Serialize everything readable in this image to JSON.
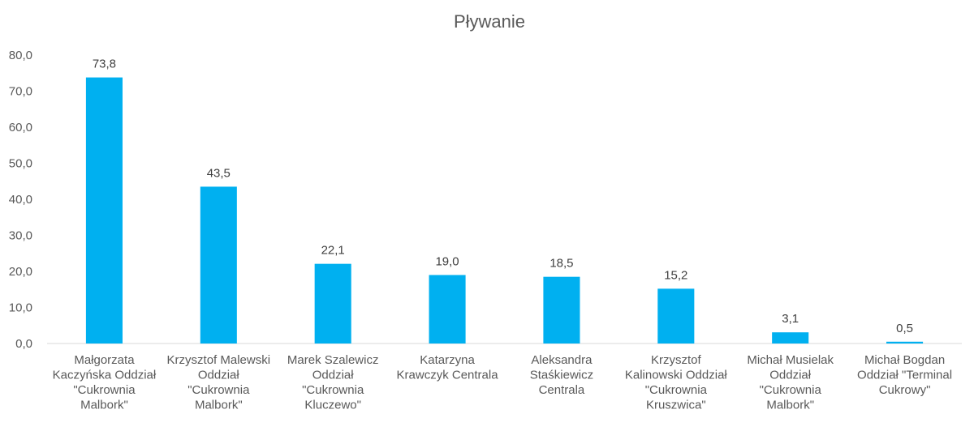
{
  "chart_data": {
    "type": "bar",
    "title": "Pływanie",
    "xlabel": "",
    "ylabel": "",
    "ylim": [
      0,
      80
    ],
    "y_ticks": [
      "0,0",
      "10,0",
      "20,0",
      "30,0",
      "40,0",
      "50,0",
      "60,0",
      "70,0",
      "80,0"
    ],
    "grid": false,
    "legend": "none",
    "bar_color": "#00B0F0",
    "categories": [
      [
        "Małgorzata",
        "Kaczyńska Oddział",
        "\"Cukrownia",
        "Malbork\""
      ],
      [
        "Krzysztof Malewski",
        "Oddział",
        "\"Cukrownia",
        "Malbork\""
      ],
      [
        "Marek Szalewicz",
        "Oddział",
        "\"Cukrownia",
        "Kluczewo\""
      ],
      [
        "Katarzyna",
        "Krawczyk Centrala"
      ],
      [
        "Aleksandra",
        "Staśkiewicz",
        "Centrala"
      ],
      [
        "Krzysztof",
        "Kalinowski Oddział",
        "\"Cukrownia",
        "Kruszwica\""
      ],
      [
        "Michał Musielak",
        "Oddział",
        "\"Cukrownia",
        "Malbork\""
      ],
      [
        "Michał Bogdan",
        "Oddział \"Terminal",
        "Cukrowy\""
      ]
    ],
    "values": [
      73.8,
      43.5,
      22.1,
      19.0,
      18.5,
      15.2,
      3.1,
      0.5
    ],
    "data_labels": [
      "73,8",
      "43,5",
      "22,1",
      "19,0",
      "18,5",
      "15,2",
      "3,1",
      "0,5"
    ]
  }
}
